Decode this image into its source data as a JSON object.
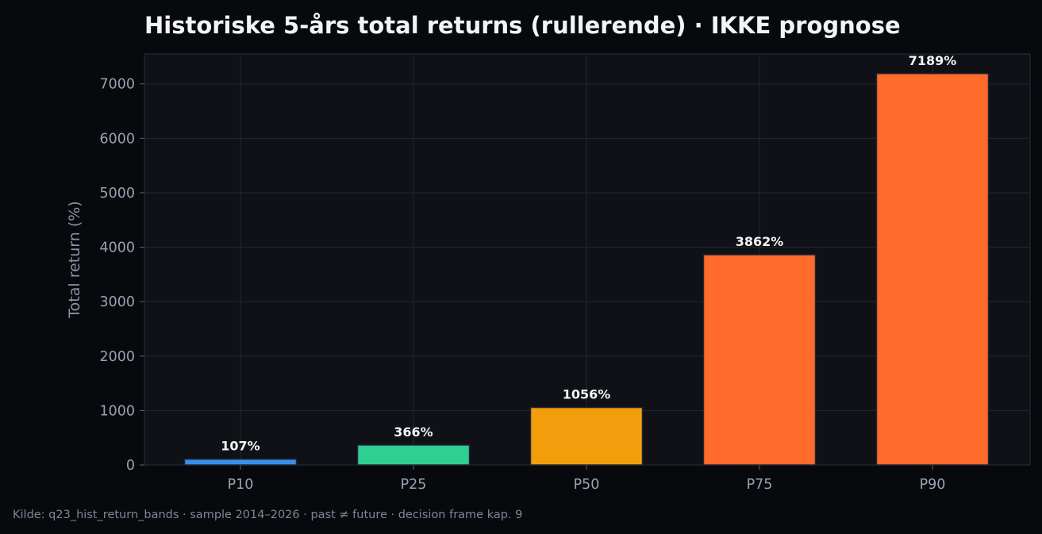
{
  "chart_data": {
    "type": "bar",
    "title": "Historiske 5-års total returns (rullerende) · IKKE prognose",
    "xlabel": "",
    "ylabel": "Total return (%)",
    "categories": [
      "P10",
      "P25",
      "P50",
      "P75",
      "P90"
    ],
    "values": [
      107,
      366,
      1056,
      3862,
      7189
    ],
    "value_labels": [
      "107%",
      "366%",
      "1056%",
      "3862%",
      "7189%"
    ],
    "colors": [
      "#3b8eea",
      "#2fcf93",
      "#f29e0c",
      "#ff6b2b",
      "#ff6b2b"
    ],
    "ylim": [
      0,
      7550
    ],
    "yticks": [
      0,
      1000,
      2000,
      3000,
      4000,
      5000,
      6000,
      7000
    ],
    "grid": true,
    "legend": "none"
  },
  "footer": "Kilde: q23_hist_return_bands · sample 2014–2026 · past ≠ future · decision frame kap. 9",
  "theme": {
    "background": "#07090d",
    "plot_background": "#0f1116",
    "grid": "#232733",
    "text": "#f2f4f7",
    "muted": "#9aa3b2"
  }
}
